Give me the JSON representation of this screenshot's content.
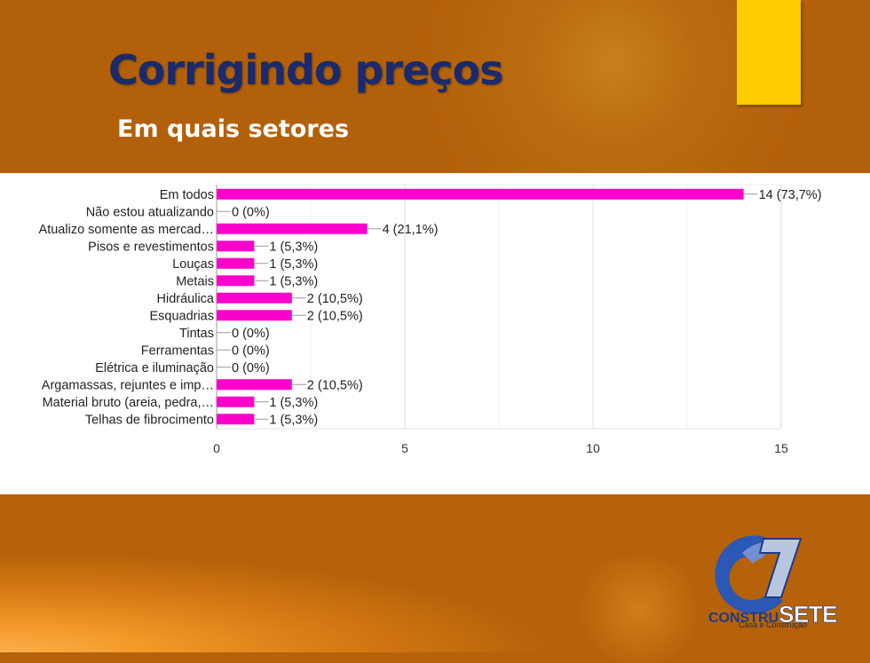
{
  "slide": {
    "title": "Corrigindo preços",
    "subtitle": "Em quais setores",
    "logo": {
      "brand_left": "CONSTRU",
      "brand_right": "SETE",
      "tagline": "Casa e Construção"
    },
    "colors": {
      "background": "#b5620a",
      "title": "#1a2a6c",
      "accent": "#ffcc00",
      "bar": "#ff00cc"
    }
  },
  "chart_data": {
    "type": "bar",
    "orientation": "horizontal",
    "categories": [
      "Em todos",
      "Não estou atualizando",
      "Atualizo somente as mercad…",
      "Pisos e revestimentos",
      "Louças",
      "Metais",
      "Hidráulica",
      "Esquadrias",
      "Tintas",
      "Ferramentas",
      "Elétrica e iluminação",
      "Argamassas, rejuntes e imp…",
      "Material bruto (areia, pedra,…",
      "Telhas de fibrocimento"
    ],
    "values": [
      14,
      0,
      4,
      1,
      1,
      1,
      2,
      2,
      0,
      0,
      0,
      2,
      1,
      1
    ],
    "data_labels": [
      "14 (73,7%)",
      "0 (0%)",
      "4 (21,1%)",
      "1 (5,3%)",
      "1 (5,3%)",
      "1 (5,3%)",
      "2 (10,5%)",
      "2 (10,5%)",
      "0 (0%)",
      "0 (0%)",
      "0 (0%)",
      "2 (10,5%)",
      "1 (5,3%)",
      "1 (5,3%)"
    ],
    "xlim": [
      0,
      15
    ],
    "xticks": [
      0,
      5,
      10,
      15
    ],
    "grid": true,
    "color": "#ff00cc"
  }
}
